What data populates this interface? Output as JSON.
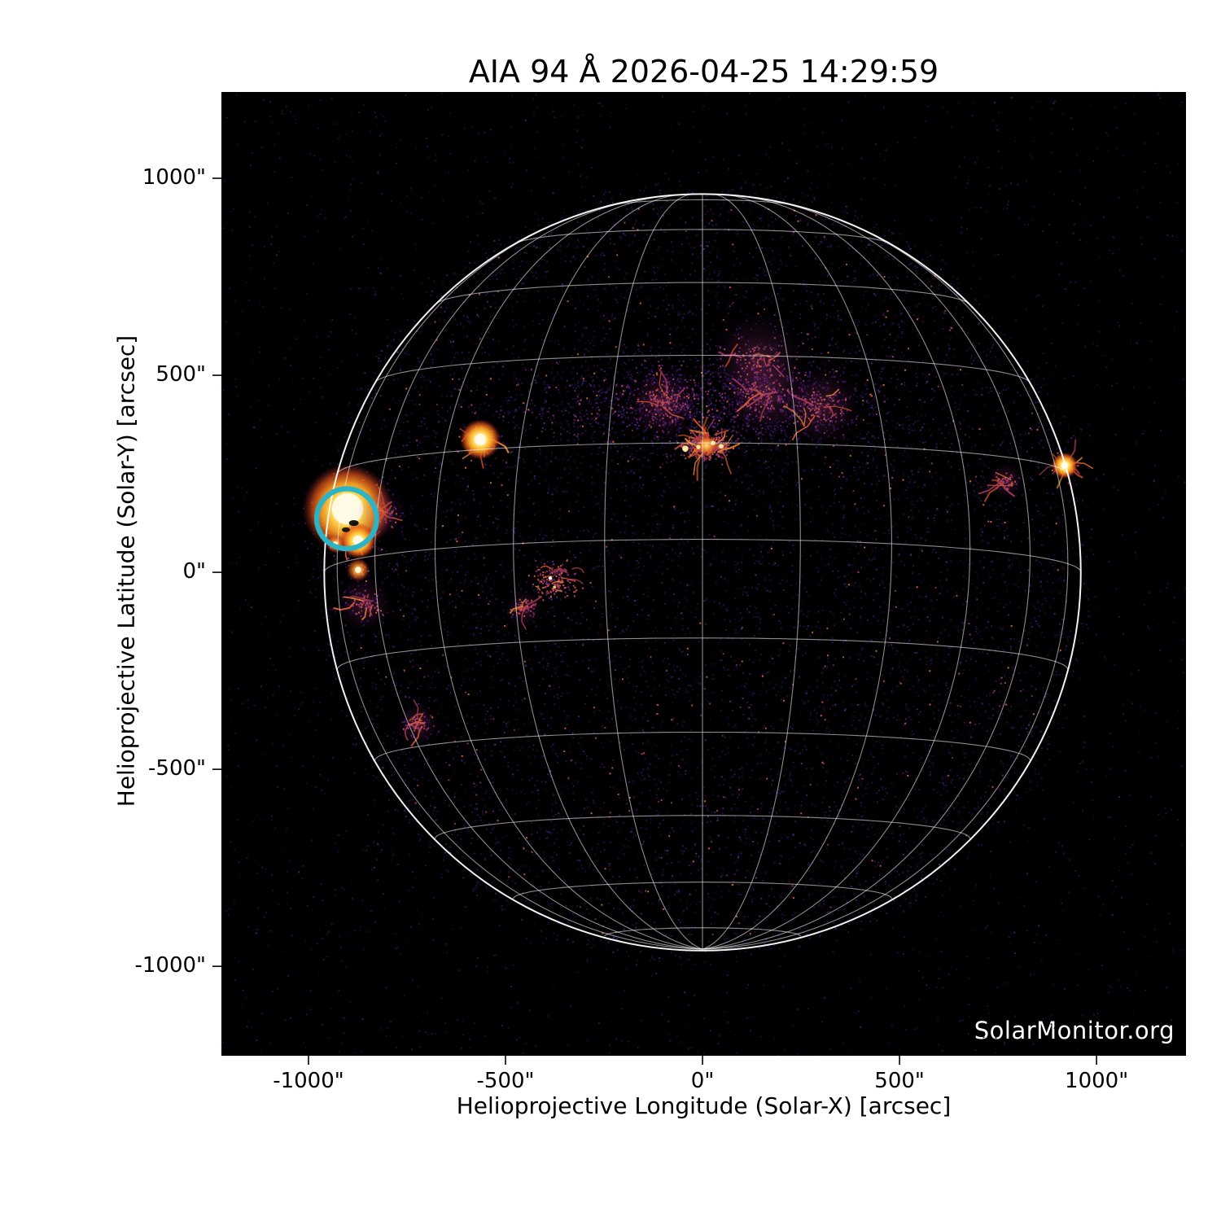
{
  "figure": {
    "title": "AIA 94 Å 2026-04-25 14:29:59",
    "watermark": "SolarMonitor.org"
  },
  "axes": {
    "xlabel": "Helioprojective Longitude (Solar-X) [arcsec]",
    "ylabel": "Helioprojective Latitude (Solar-Y) [arcsec]",
    "x_tick_values": [
      -1000,
      -500,
      0,
      500,
      1000
    ],
    "x_tick_labels": [
      "-1000\"",
      "-500\"",
      "0\"",
      "500\"",
      "1000\""
    ],
    "y_tick_values": [
      1000,
      500,
      0,
      -500,
      -1000
    ],
    "y_tick_labels": [
      "1000\"",
      "500\"",
      "0\"",
      "-500\"",
      "-1000\""
    ]
  },
  "chart_data": {
    "type": "heatmap",
    "subtype": "solar-euv-full-disk-image",
    "title": "AIA 94 Å 2026-04-25 14:29:59",
    "instrument": "AIA",
    "wavelength_angstrom": 94,
    "datetime": "2026-04-25 14:29:59",
    "xlabel": "Helioprojective Longitude (Solar-X) [arcsec]",
    "ylabel": "Helioprojective Latitude (Solar-Y) [arcsec]",
    "xlim": [
      -1221,
      1227
    ],
    "ylim": [
      -1227,
      1219
    ],
    "x_ticks": [
      -1000,
      -500,
      0,
      500,
      1000
    ],
    "y_ticks": [
      1000,
      500,
      0,
      -500,
      -1000
    ],
    "background": "#000000",
    "colormap": "sdoaia94 (black - purple - orange - yellow - white)",
    "grid_on": true,
    "solar_disk": {
      "center_arcsec": [
        0,
        0
      ],
      "radius_arcsec": 960,
      "limb_color": "#ffffff"
    },
    "heliographic_grid": {
      "spacing_deg": 15,
      "b0_deg": -5,
      "color": "#ffffff",
      "opacity": 0.55
    },
    "annotations": [
      {
        "type": "circle",
        "x": -903,
        "y": 136,
        "radius_arcsec": 76,
        "stroke_arcsec": 13,
        "color": "#2ab4c6",
        "label": "flagged active region at east limb"
      }
    ],
    "features": [
      {
        "name": "circled-active-region-core",
        "type": "bright",
        "x": -901,
        "y": 161,
        "core": 40,
        "halo": 115
      },
      {
        "name": "circled-ar-south-extension",
        "type": "bright",
        "x": -874,
        "y": 80,
        "core": 13,
        "halo": 46
      },
      {
        "name": "bright-point-below-circle",
        "type": "warm",
        "x": -874,
        "y": 6,
        "core": 10,
        "halo": 30
      },
      {
        "name": "limbward-knot",
        "type": "warm",
        "x": -932,
        "y": 72,
        "core": 8,
        "halo": 24
      },
      {
        "name": "compact-ar-northeast",
        "type": "bright",
        "x": -564,
        "y": 337,
        "core": 15,
        "halo": 52
      },
      {
        "name": "central-plage-complex",
        "type": "filament",
        "x": 10,
        "y": 322,
        "core": 0,
        "halo": 230
      },
      {
        "name": "northern-filament-arc",
        "type": "wisp",
        "x": 159,
        "y": 450,
        "core": 0,
        "halo": 140
      },
      {
        "name": "north-central-wisp",
        "type": "wisp",
        "x": -100,
        "y": 430,
        "core": 0,
        "halo": 120
      },
      {
        "name": "north-east-of-center-wisp",
        "type": "wisp",
        "x": 300,
        "y": 420,
        "core": 0,
        "halo": 130
      },
      {
        "name": "north-band-wisp",
        "type": "wisp",
        "x": 140,
        "y": 540,
        "core": 0,
        "halo": 150
      },
      {
        "name": "quiet-sun-loops",
        "type": "loops",
        "x": -382,
        "y": -19,
        "core": 0,
        "halo": 90
      },
      {
        "name": "ar-at-west-limb",
        "type": "bright",
        "x": 919,
        "y": 271,
        "core": 9,
        "halo": 34
      },
      {
        "name": "southeast-wisp",
        "type": "wisp",
        "x": -723,
        "y": -386,
        "core": 0,
        "halo": 70
      },
      {
        "name": "east-wisp",
        "type": "wisp",
        "x": -454,
        "y": -91,
        "core": 0,
        "halo": 60
      },
      {
        "name": "east-limb-wisps",
        "type": "wisp",
        "x": -812,
        "y": 150,
        "core": 0,
        "halo": 80
      },
      {
        "name": "below-circle-trail",
        "type": "wisp",
        "x": -860,
        "y": -80,
        "core": 0,
        "halo": 90
      },
      {
        "name": "west-inner-wisp",
        "type": "wisp",
        "x": 770,
        "y": 230,
        "core": 0,
        "halo": 60
      }
    ],
    "watermark": "SolarMonitor.org"
  }
}
